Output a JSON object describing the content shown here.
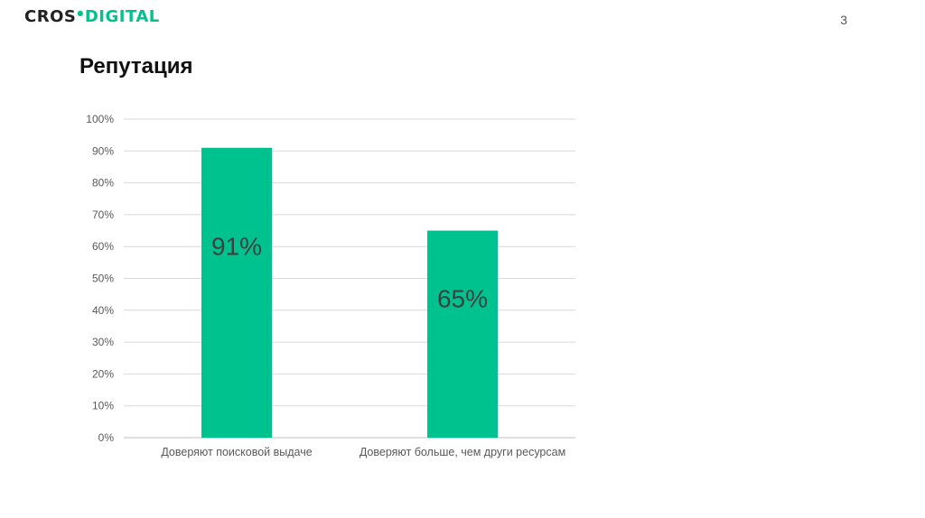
{
  "logo": {
    "part1": "CROS",
    "part2": "DIGITAL"
  },
  "page_number": "3",
  "title": "Репутация",
  "colors": {
    "bar": "#00c28e",
    "grid": "#d9d9d9",
    "brand": "#00c28e"
  },
  "chart_data": {
    "type": "bar",
    "title": "",
    "xlabel": "",
    "ylabel": "",
    "categories": [
      "Доверяют поисковой выдаче",
      "Доверяют больше, чем други ресурсам"
    ],
    "values": [
      91,
      65
    ],
    "data_labels": [
      "91%",
      "65%"
    ],
    "ylim": [
      0,
      100
    ],
    "yticks": [
      "0%",
      "10%",
      "20%",
      "30%",
      "40%",
      "50%",
      "60%",
      "70%",
      "80%",
      "90%",
      "100%"
    ],
    "grid": true,
    "legend": "none"
  }
}
